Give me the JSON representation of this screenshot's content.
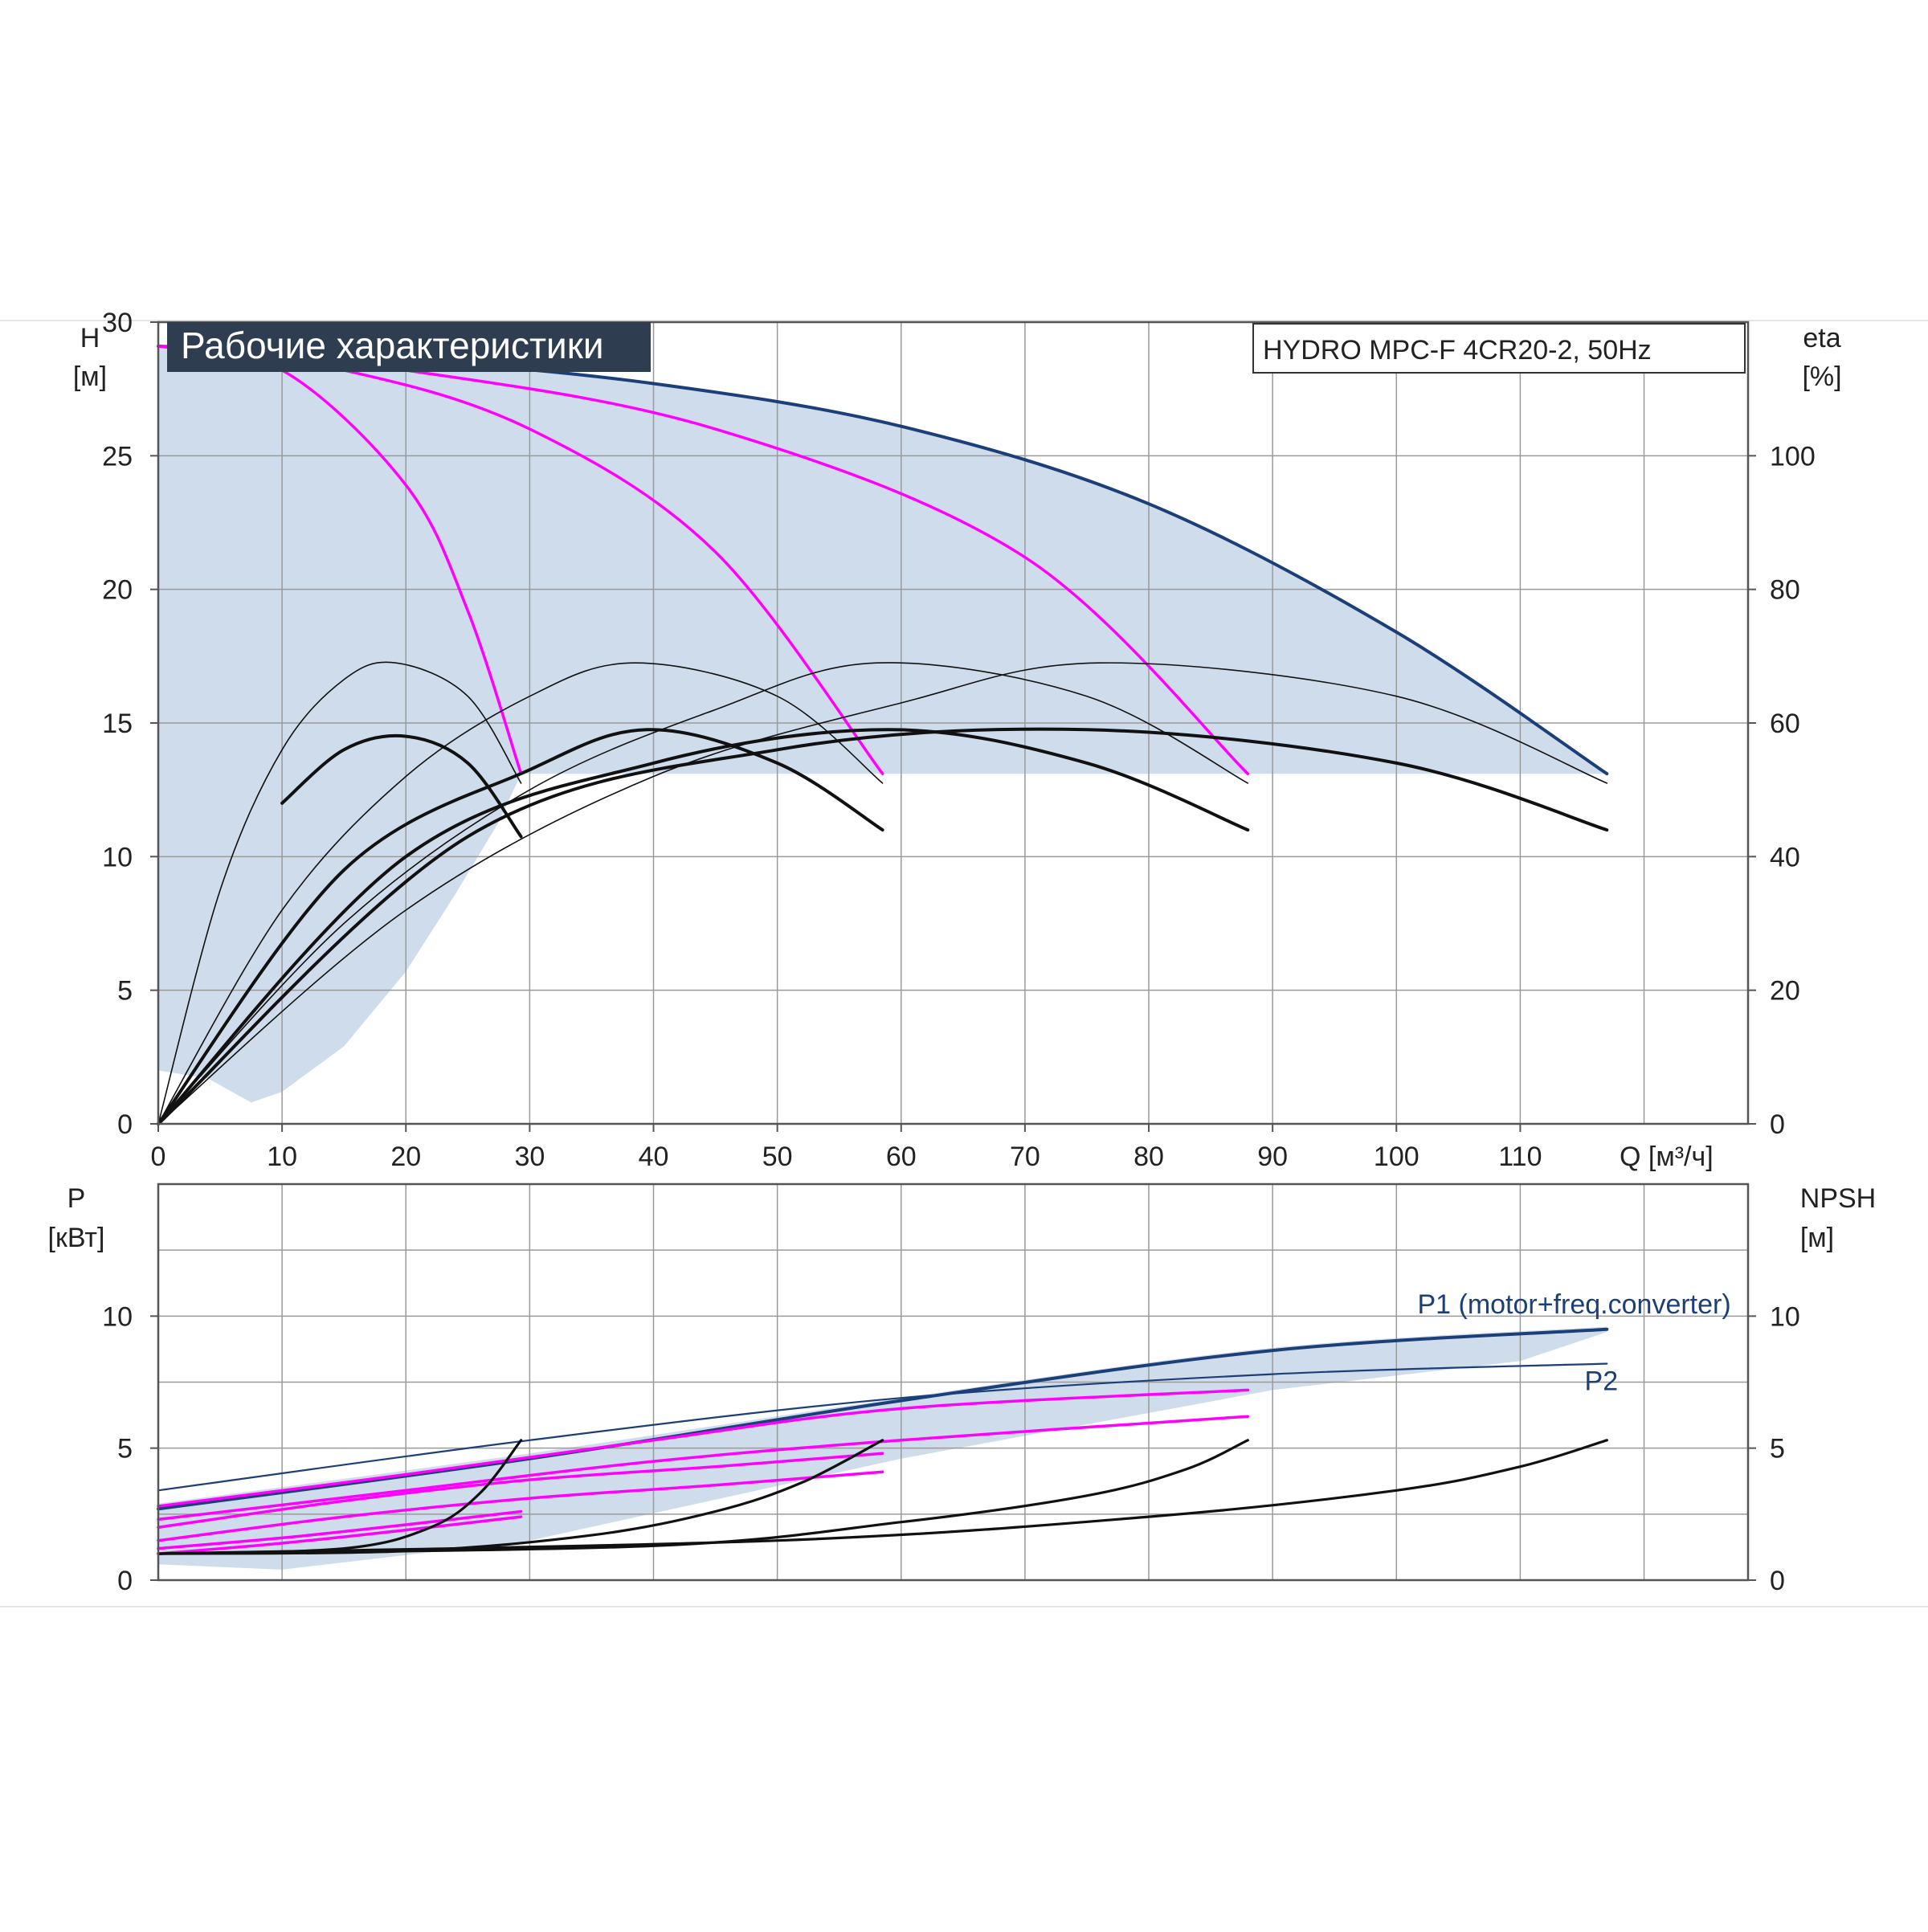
{
  "chart_data": [
    {
      "type": "line",
      "title": "Рабочие характеристики",
      "model_label": "HYDRO MPC-F 4CR20-2, 50Hz",
      "xlabel": "Q [м³/ч]",
      "ylabel_top": "H",
      "ylabel_unit": "[м]",
      "y2label_top": "eta",
      "y2label_unit": "[%]",
      "xlim": [
        0,
        128.4
      ],
      "ylim": [
        0,
        30
      ],
      "y2lim": [
        0,
        120
      ],
      "xticks": [
        0,
        10,
        20,
        30,
        40,
        50,
        60,
        70,
        80,
        90,
        100,
        110
      ],
      "xtick_labels": [
        "0",
        "10",
        "20",
        "30",
        "40",
        "50",
        "60",
        "70",
        "80",
        "90",
        "100",
        "110"
      ],
      "yticks": [
        0,
        5,
        10,
        15,
        20,
        25,
        30
      ],
      "ytick_labels": [
        "0",
        "5",
        "10",
        "15",
        "20",
        "25",
        "30"
      ],
      "y2ticks": [
        0,
        20,
        40,
        60,
        80,
        100
      ],
      "y2tick_labels": [
        "0",
        "20",
        "40",
        "60",
        "80",
        "100"
      ],
      "grid": true,
      "colors": {
        "max_curve": "#1c3f78",
        "head_curves": "#ff00ff",
        "efficiency": "#000000",
        "area": "#cfdcec",
        "title_bg": "#2e3e50"
      },
      "series": [
        {
          "group": "max",
          "x": [
            0,
            20,
            40,
            60,
            80,
            100,
            117
          ],
          "values": [
            29.1,
            28.6,
            27.7,
            26.1,
            23.2,
            18.4,
            13.1
          ]
        },
        {
          "group": "head",
          "x": [
            0,
            10,
            20,
            25,
            29.3
          ],
          "values": [
            29.1,
            28.2,
            23.9,
            19.2,
            13.1
          ]
        },
        {
          "group": "head",
          "x": [
            0,
            15,
            30,
            45,
            58.5
          ],
          "values": [
            29.1,
            28.2,
            26.0,
            21.4,
            13.1
          ]
        },
        {
          "group": "head",
          "x": [
            0,
            20,
            45,
            70,
            88
          ],
          "values": [
            29.1,
            28.2,
            26.0,
            21.2,
            13.1
          ]
        },
        {
          "group": "eta",
          "x": [
            0,
            5,
            10,
            15,
            19.2,
            25,
            29.3
          ],
          "values": [
            0,
            35,
            56,
            66.5,
            69,
            64,
            51
          ]
        },
        {
          "group": "eta",
          "x": [
            0,
            10,
            20,
            30,
            38.5,
            50,
            58.5
          ],
          "values": [
            0,
            32,
            52,
            64,
            69,
            64,
            51
          ]
        },
        {
          "group": "eta",
          "x": [
            0,
            15,
            30,
            45,
            58,
            75,
            88
          ],
          "values": [
            0,
            30,
            50,
            62,
            69,
            64,
            51
          ]
        },
        {
          "group": "eta",
          "x": [
            0,
            20,
            40,
            60,
            76,
            100,
            117
          ],
          "values": [
            0,
            32,
            52,
            63,
            69,
            64,
            51
          ]
        },
        {
          "group": "eta2",
          "x": [
            10,
            15,
            20,
            25,
            29.3
          ],
          "values": [
            48,
            56,
            58,
            54,
            43
          ]
        },
        {
          "group": "eta2",
          "x": [
            0,
            15,
            30,
            39.5,
            50,
            58.5
          ],
          "values": [
            0,
            38,
            53,
            59,
            54,
            44
          ]
        },
        {
          "group": "eta2",
          "x": [
            0,
            20,
            40,
            59,
            75,
            88
          ],
          "values": [
            0,
            40,
            54,
            59,
            54,
            44
          ]
        },
        {
          "group": "eta2",
          "x": [
            0,
            25,
            50,
            75,
            100,
            117
          ],
          "values": [
            0,
            43,
            56,
            59,
            54,
            44
          ]
        }
      ]
    },
    {
      "type": "line",
      "ylabel_top": "P",
      "ylabel_unit": "[кВт]",
      "y2label_top": "NPSH",
      "y2label_unit": "[м]",
      "xlim": [
        0,
        128.4
      ],
      "ylim": [
        0,
        15
      ],
      "y2lim": [
        0,
        15
      ],
      "yticks": [
        0,
        5,
        10
      ],
      "ytick_labels": [
        "0",
        "5",
        "10"
      ],
      "y2ticks": [
        0,
        5,
        10
      ],
      "y2tick_labels": [
        "0",
        "5",
        "10"
      ],
      "grid": true,
      "annotations": [
        {
          "text": "P1 (motor+freq.converter)",
          "x": 101.7,
          "y": 10.1
        },
        {
          "text": "P2",
          "x": 115.2,
          "y": 7.2
        }
      ],
      "series": [
        {
          "group": "p1",
          "x": [
            0,
            30,
            60,
            90,
            117
          ],
          "values": [
            2.7,
            4.6,
            6.8,
            8.7,
            9.5
          ]
        },
        {
          "group": "p2",
          "x": [
            0,
            30,
            60,
            90,
            117
          ],
          "values": [
            3.4,
            5.3,
            6.9,
            7.8,
            8.2
          ]
        },
        {
          "group": "mp",
          "x": [
            0,
            10,
            20,
            29.3
          ],
          "values": [
            1.0,
            1.4,
            1.9,
            2.4
          ]
        },
        {
          "group": "mp",
          "x": [
            0,
            10,
            20,
            29.3
          ],
          "values": [
            1.2,
            1.6,
            2.1,
            2.6
          ]
        },
        {
          "group": "mp",
          "x": [
            0,
            15,
            30,
            45,
            58.5
          ],
          "values": [
            1.5,
            2.4,
            3.1,
            3.6,
            4.1
          ]
        },
        {
          "group": "mp",
          "x": [
            0,
            15,
            30,
            45,
            58.5
          ],
          "values": [
            2.0,
            3.0,
            3.8,
            4.3,
            4.8
          ]
        },
        {
          "group": "mp",
          "x": [
            0,
            20,
            40,
            60,
            88
          ],
          "values": [
            2.3,
            3.4,
            4.5,
            5.3,
            6.2
          ]
        },
        {
          "group": "mp",
          "x": [
            0,
            20,
            40,
            60,
            88
          ],
          "values": [
            2.8,
            4.0,
            5.3,
            6.5,
            7.2
          ]
        },
        {
          "group": "npsh",
          "x": [
            0,
            15,
            22,
            26,
            29.3
          ],
          "values": [
            1.0,
            1.2,
            2.0,
            3.3,
            5.3
          ]
        },
        {
          "group": "npsh",
          "x": [
            0,
            20,
            35,
            45,
            52,
            58.5
          ],
          "values": [
            1.0,
            1.1,
            1.7,
            2.6,
            3.7,
            5.3
          ]
        },
        {
          "group": "npsh",
          "x": [
            0,
            40,
            60,
            75,
            83,
            88
          ],
          "values": [
            1.0,
            1.3,
            2.2,
            3.2,
            4.2,
            5.3
          ]
        },
        {
          "group": "npsh",
          "x": [
            0,
            50,
            80,
            100,
            110,
            117
          ],
          "values": [
            1.0,
            1.5,
            2.4,
            3.4,
            4.3,
            5.3
          ]
        }
      ]
    }
  ]
}
